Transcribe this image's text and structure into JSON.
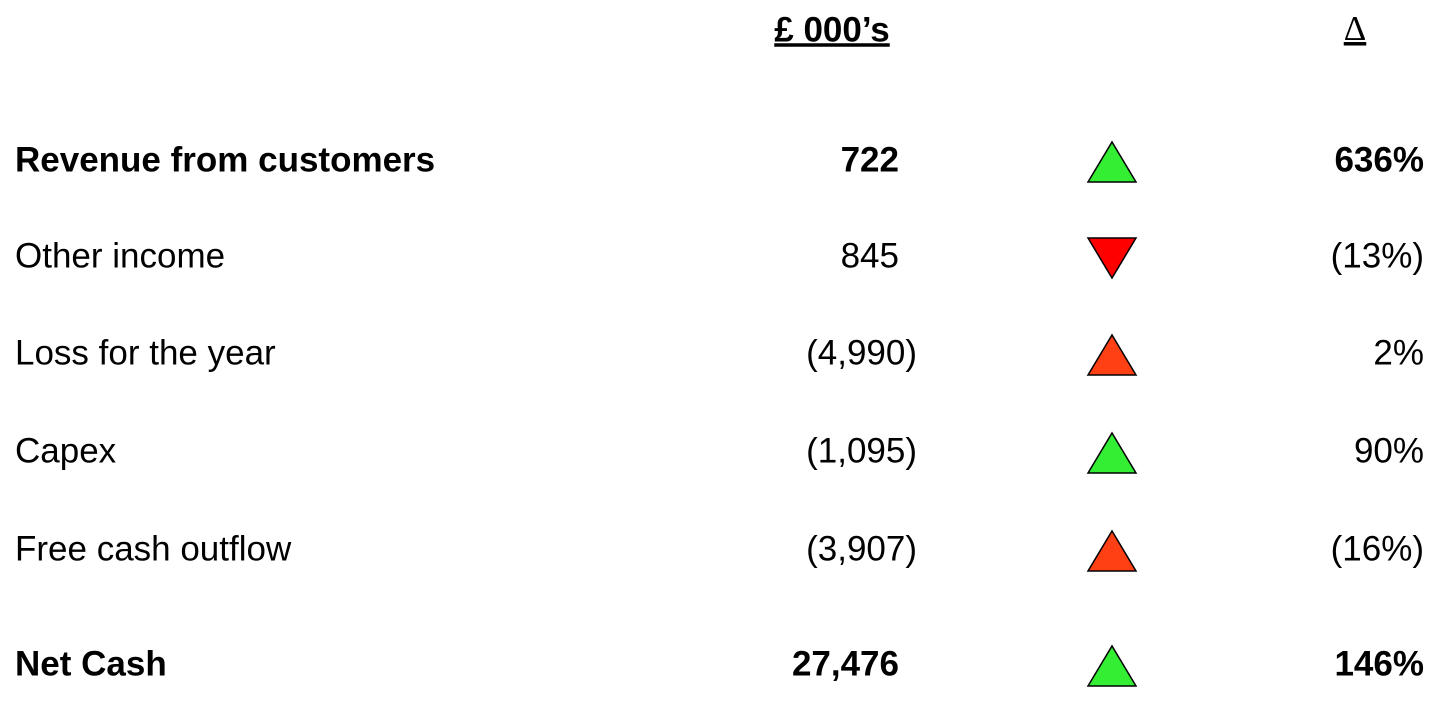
{
  "header": {
    "value_column": "£ 000’s",
    "change_column": "Δ"
  },
  "table": {
    "rows": [
      {
        "label": "Revenue from customers",
        "value": "722",
        "change": "636%",
        "bold": true,
        "indicator": {
          "direction": "up",
          "color": "#33ee33"
        }
      },
      {
        "label": "Other income",
        "value": "845",
        "change": "(13%)",
        "bold": false,
        "indicator": {
          "direction": "down",
          "color": "#ff0000"
        }
      },
      {
        "label": "Loss for the year",
        "value": "(4,990)",
        "change": "2%",
        "bold": false,
        "indicator": {
          "direction": "up",
          "color": "#ff4015"
        }
      },
      {
        "label": "Capex",
        "value": "(1,095)",
        "change": "90%",
        "bold": false,
        "indicator": {
          "direction": "up",
          "color": "#33ee33"
        }
      },
      {
        "label": "Free cash outflow",
        "value": "(3,907)",
        "change": "(16%)",
        "bold": false,
        "indicator": {
          "direction": "up",
          "color": "#ff4015"
        }
      },
      {
        "label": "Net Cash",
        "value": "27,476",
        "change": "146%",
        "bold": true,
        "indicator": {
          "direction": "up",
          "color": "#33ee33"
        }
      }
    ]
  }
}
